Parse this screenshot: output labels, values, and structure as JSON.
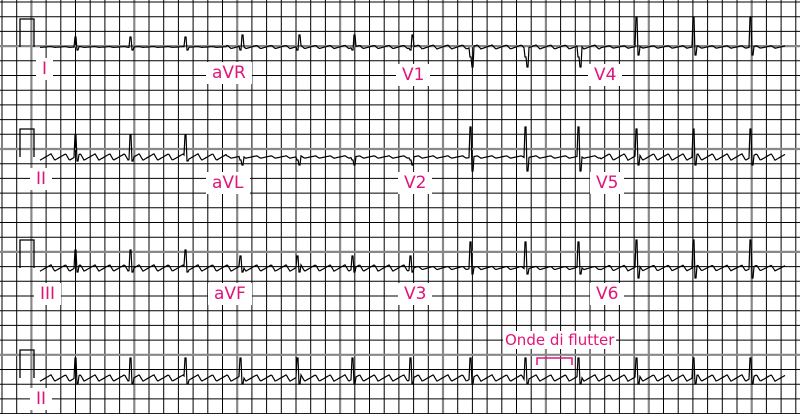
{
  "leads": {
    "row1": [
      "I",
      "aVR",
      "V1",
      "V4"
    ],
    "row2": [
      "II",
      "aVL",
      "V2",
      "V5"
    ],
    "row3": [
      "III",
      "aVF",
      "V3",
      "V6"
    ],
    "row4": [
      "II"
    ]
  },
  "annotation": "Onde di flutter",
  "colors": {
    "label": "#e0147a",
    "grid": "#000000",
    "grid_major": "#888888",
    "trace": "#000000"
  }
}
